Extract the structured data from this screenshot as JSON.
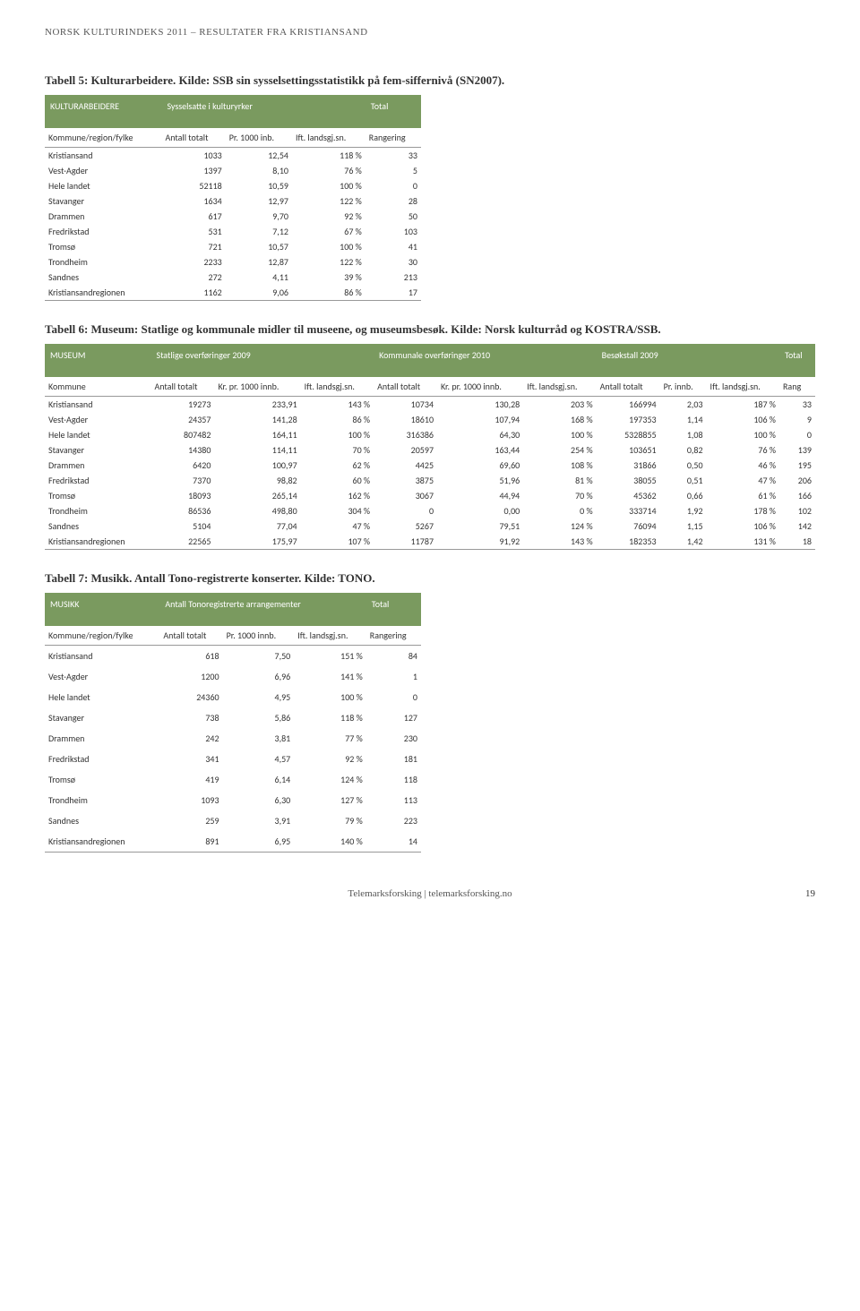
{
  "doc_header": "NORSK KULTURINDEKS 2011 – RESULTATER FRA KRISTIANSAND",
  "table5": {
    "caption": "Tabell 5: Kulturarbeidere. Kilde: SSB sin sysselsettingsstatistikk på fem-siffernivå (SN2007).",
    "banner": [
      "KULTURARBEIDERE",
      "Sysselsatte i kulturyrker",
      "Total"
    ],
    "headers": [
      "Kommune/region/fylke",
      "Antall totalt",
      "Pr. 1000 inb.",
      "Ift. landsgj.sn.",
      "Rangering"
    ],
    "rows": [
      [
        "Kristiansand",
        "1033",
        "12,54",
        "118 %",
        "33"
      ],
      [
        "Vest-Agder",
        "1397",
        "8,10",
        "76 %",
        "5"
      ],
      [
        "Hele landet",
        "52118",
        "10,59",
        "100 %",
        "0"
      ],
      [
        "Stavanger",
        "1634",
        "12,97",
        "122 %",
        "28"
      ],
      [
        "Drammen",
        "617",
        "9,70",
        "92 %",
        "50"
      ],
      [
        "Fredrikstad",
        "531",
        "7,12",
        "67 %",
        "103"
      ],
      [
        "Tromsø",
        "721",
        "10,57",
        "100 %",
        "41"
      ],
      [
        "Trondheim",
        "2233",
        "12,87",
        "122 %",
        "30"
      ],
      [
        "Sandnes",
        "272",
        "4,11",
        "39 %",
        "213"
      ],
      [
        "Kristiansandregionen",
        "1162",
        "9,06",
        "86 %",
        "17"
      ]
    ]
  },
  "table6": {
    "caption": "Tabell 6: Museum: Statlige og kommunale midler til museene, og museumsbesøk. Kilde: Norsk kulturråd og KOSTRA/SSB.",
    "banner": [
      "MUSEUM",
      "Statlige overføringer 2009",
      "Kommunale overføringer 2010",
      "Besøkstall 2009",
      "Total"
    ],
    "headers": [
      "Kommune",
      "Antall totalt",
      "Kr. pr. 1000 innb.",
      "Ift. landsgj.sn.",
      "Antall totalt",
      "Kr. pr. 1000 innb.",
      "Ift. landsgj.sn.",
      "Antall totalt",
      "Pr. innb.",
      "Ift. landsgj.sn.",
      "Rang"
    ],
    "rows": [
      [
        "Kristiansand",
        "19273",
        "233,91",
        "143 %",
        "10734",
        "130,28",
        "203 %",
        "166994",
        "2,03",
        "187 %",
        "33"
      ],
      [
        "Vest-Agder",
        "24357",
        "141,28",
        "86 %",
        "18610",
        "107,94",
        "168 %",
        "197353",
        "1,14",
        "106 %",
        "9"
      ],
      [
        "Hele landet",
        "807482",
        "164,11",
        "100 %",
        "316386",
        "64,30",
        "100 %",
        "5328855",
        "1,08",
        "100 %",
        "0"
      ],
      [
        "Stavanger",
        "14380",
        "114,11",
        "70 %",
        "20597",
        "163,44",
        "254 %",
        "103651",
        "0,82",
        "76 %",
        "139"
      ],
      [
        "Drammen",
        "6420",
        "100,97",
        "62 %",
        "4425",
        "69,60",
        "108 %",
        "31866",
        "0,50",
        "46 %",
        "195"
      ],
      [
        "Fredrikstad",
        "7370",
        "98,82",
        "60 %",
        "3875",
        "51,96",
        "81 %",
        "38055",
        "0,51",
        "47 %",
        "206"
      ],
      [
        "Tromsø",
        "18093",
        "265,14",
        "162 %",
        "3067",
        "44,94",
        "70 %",
        "45362",
        "0,66",
        "61 %",
        "166"
      ],
      [
        "Trondheim",
        "86536",
        "498,80",
        "304 %",
        "0",
        "0,00",
        "0 %",
        "333714",
        "1,92",
        "178 %",
        "102"
      ],
      [
        "Sandnes",
        "5104",
        "77,04",
        "47 %",
        "5267",
        "79,51",
        "124 %",
        "76094",
        "1,15",
        "106 %",
        "142"
      ],
      [
        "Kristiansandregionen",
        "22565",
        "175,97",
        "107 %",
        "11787",
        "91,92",
        "143 %",
        "182353",
        "1,42",
        "131 %",
        "18"
      ]
    ]
  },
  "table7": {
    "caption": "Tabell 7: Musikk. Antall Tono-registrerte konserter. Kilde: TONO.",
    "banner": [
      "MUSIKK",
      "Antall Tonoregistrerte arrangementer",
      "Total"
    ],
    "headers": [
      "Kommune/region/fylke",
      "Antall totalt",
      "Pr. 1000 innb.",
      "Ift. landsgj.sn.",
      "Rangering"
    ],
    "rows": [
      [
        "Kristiansand",
        "618",
        "7,50",
        "151 %",
        "84"
      ],
      [
        "Vest-Agder",
        "1200",
        "6,96",
        "141 %",
        "1"
      ],
      [
        "Hele landet",
        "24360",
        "4,95",
        "100 %",
        "0"
      ],
      [
        "Stavanger",
        "738",
        "5,86",
        "118 %",
        "127"
      ],
      [
        "Drammen",
        "242",
        "3,81",
        "77 %",
        "230"
      ],
      [
        "Fredrikstad",
        "341",
        "4,57",
        "92 %",
        "181"
      ],
      [
        "Tromsø",
        "419",
        "6,14",
        "124 %",
        "118"
      ],
      [
        "Trondheim",
        "1093",
        "6,30",
        "127 %",
        "113"
      ],
      [
        "Sandnes",
        "259",
        "3,91",
        "79 %",
        "223"
      ],
      [
        "Kristiansandregionen",
        "891",
        "6,95",
        "140 %",
        "14"
      ]
    ]
  },
  "footer": {
    "text": "Telemarksforsking  |  telemarksforsking.no",
    "page": "19"
  },
  "colors": {
    "banner_bg": "#7a9a5f",
    "banner_fg": "#ffffff"
  }
}
